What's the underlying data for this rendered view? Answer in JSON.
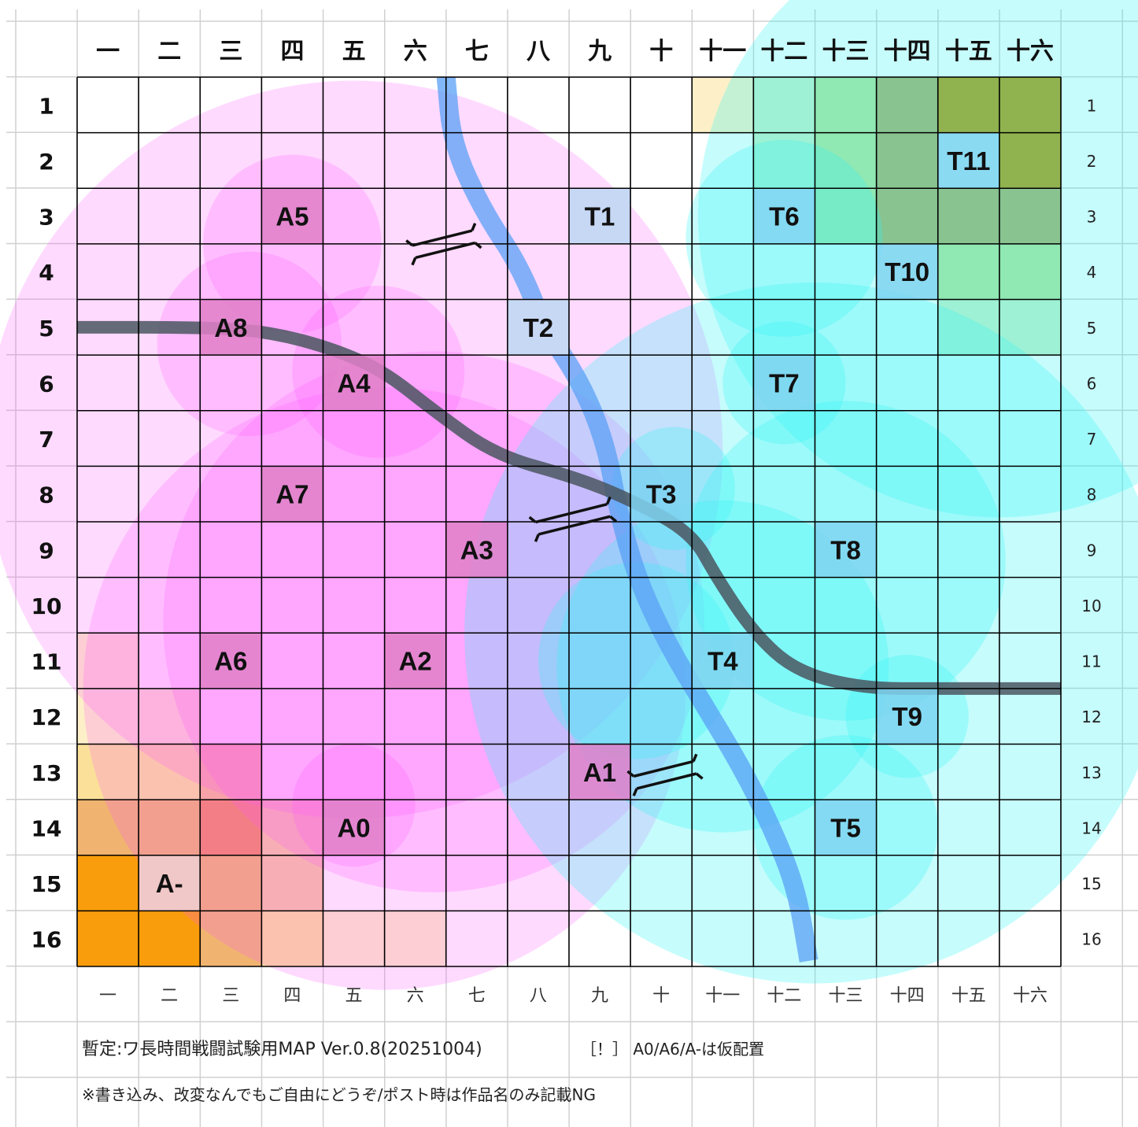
{
  "map": {
    "columns": [
      "一",
      "二",
      "三",
      "四",
      "五",
      "六",
      "七",
      "八",
      "九",
      "十",
      "十一",
      "十二",
      "十三",
      "十四",
      "十五",
      "十六"
    ],
    "rows": [
      "1",
      "2",
      "3",
      "4",
      "5",
      "6",
      "7",
      "8",
      "9",
      "10",
      "11",
      "12",
      "13",
      "14",
      "15",
      "16"
    ],
    "colors": {
      "a_zone": "#ff55ff",
      "a_unit": "#e07fc8",
      "t_zone": "#33f3f5",
      "t_unit": "#7fd3f0",
      "t1_unit": "#c7d8f5",
      "river": "#5aa0f5",
      "road": "#4a5660",
      "grid": "#000000",
      "outer_grid": "#d0d0d0"
    },
    "units": [
      {
        "label": "A5",
        "col": 4,
        "row": 3,
        "side": "A"
      },
      {
        "label": "A8",
        "col": 3,
        "row": 5,
        "side": "A"
      },
      {
        "label": "A4",
        "col": 5,
        "row": 6,
        "side": "A"
      },
      {
        "label": "A7",
        "col": 4,
        "row": 8,
        "side": "A"
      },
      {
        "label": "A3",
        "col": 7,
        "row": 9,
        "side": "A"
      },
      {
        "label": "A6",
        "col": 3,
        "row": 11,
        "side": "A"
      },
      {
        "label": "A2",
        "col": 6,
        "row": 11,
        "side": "A"
      },
      {
        "label": "A1",
        "col": 9,
        "row": 13,
        "side": "A"
      },
      {
        "label": "A0",
        "col": 5,
        "row": 14,
        "side": "A"
      },
      {
        "label": "A-",
        "col": 2,
        "row": 15,
        "side": "A-"
      },
      {
        "label": "T1",
        "col": 9,
        "row": 3,
        "side": "T1"
      },
      {
        "label": "T2",
        "col": 8,
        "row": 5,
        "side": "T1"
      },
      {
        "label": "T11",
        "col": 15,
        "row": 2,
        "side": "T"
      },
      {
        "label": "T6",
        "col": 12,
        "row": 3,
        "side": "T"
      },
      {
        "label": "T10",
        "col": 14,
        "row": 4,
        "side": "T"
      },
      {
        "label": "T7",
        "col": 12,
        "row": 6,
        "side": "T"
      },
      {
        "label": "T3",
        "col": 10,
        "row": 8,
        "side": "T"
      },
      {
        "label": "T8",
        "col": 13,
        "row": 9,
        "side": "T"
      },
      {
        "label": "T4",
        "col": 11,
        "row": 11,
        "side": "T"
      },
      {
        "label": "T9",
        "col": 14,
        "row": 12,
        "side": "T"
      },
      {
        "label": "T5",
        "col": 13,
        "row": 14,
        "side": "T"
      }
    ],
    "terrain_cells": [
      {
        "col": 15,
        "row": 1,
        "color": "#b49a10"
      },
      {
        "col": 16,
        "row": 1,
        "color": "#b49a10"
      },
      {
        "col": 16,
        "row": 2,
        "color": "#b49a10"
      },
      {
        "col": 14,
        "row": 1,
        "color": "#aab06a"
      },
      {
        "col": 14,
        "row": 2,
        "color": "#aab06a"
      },
      {
        "col": 14,
        "row": 3,
        "color": "#aab06a"
      },
      {
        "col": 15,
        "row": 3,
        "color": "#aab06a"
      },
      {
        "col": 16,
        "row": 3,
        "color": "#aab06a"
      },
      {
        "col": 13,
        "row": 1,
        "color": "#b5e49a"
      },
      {
        "col": 13,
        "row": 2,
        "color": "#b5e49a"
      },
      {
        "col": 13,
        "row": 3,
        "color": "#b5e49a"
      },
      {
        "col": 15,
        "row": 4,
        "color": "#b5e49a"
      },
      {
        "col": 16,
        "row": 4,
        "color": "#b5e49a"
      },
      {
        "col": 12,
        "row": 1,
        "color": "#c8f0c8"
      },
      {
        "col": 12,
        "row": 2,
        "color": "#c8f0c8"
      },
      {
        "col": 15,
        "row": 5,
        "color": "#c8f0c8"
      },
      {
        "col": 16,
        "row": 5,
        "color": "#c8f0c8"
      },
      {
        "col": 11,
        "row": 1,
        "color": "#fdf0c8"
      },
      {
        "col": 1,
        "row": 16,
        "color": "#f99d0c"
      },
      {
        "col": 2,
        "row": 16,
        "color": "#f99d0c"
      },
      {
        "col": 1,
        "row": 15,
        "color": "#f99d0c"
      },
      {
        "col": 3,
        "row": 16,
        "color": "#f0b470"
      },
      {
        "col": 3,
        "row": 15,
        "color": "#f0b470"
      },
      {
        "col": 1,
        "row": 14,
        "color": "#f0b470"
      },
      {
        "col": 2,
        "row": 14,
        "color": "#f0b470"
      },
      {
        "col": 3,
        "row": 14,
        "color": "#f08a64"
      },
      {
        "col": 4,
        "row": 14,
        "color": "#f5c8a0"
      },
      {
        "col": 4,
        "row": 15,
        "color": "#f5c8a0"
      },
      {
        "col": 1,
        "row": 13,
        "color": "#fbe09a"
      },
      {
        "col": 2,
        "row": 13,
        "color": "#fbe09a"
      },
      {
        "col": 3,
        "row": 13,
        "color": "#f5b890"
      },
      {
        "col": 4,
        "row": 16,
        "color": "#fbe09a"
      },
      {
        "col": 5,
        "row": 16,
        "color": "#fdf0c8"
      },
      {
        "col": 6,
        "row": 16,
        "color": "#fdf0c8"
      },
      {
        "col": 1,
        "row": 12,
        "color": "#fdf0c8"
      },
      {
        "col": 1,
        "row": 11,
        "color": "#fdf0c8"
      },
      {
        "col": 2,
        "row": 12,
        "color": "#fdf0c8"
      }
    ],
    "a_zones": [
      {
        "col": 5,
        "row": 7.2,
        "r": 6.0
      },
      {
        "col": 6.3,
        "row": 10.3,
        "r": 4.4
      },
      {
        "col": 4.0,
        "row": 3.5,
        "r": 1.45
      },
      {
        "col": 3.3,
        "row": 5.3,
        "r": 1.5
      },
      {
        "col": 5.4,
        "row": 5.8,
        "r": 1.4
      },
      {
        "col": 5.5,
        "row": 11.5,
        "r": 4.9
      },
      {
        "col": 5.0,
        "row": 13.6,
        "r": 1.0
      }
    ],
    "t_zones": [
      {
        "col": 15.5,
        "row": 3.0,
        "r": 4.9
      },
      {
        "col": 12.5,
        "row": 10.5,
        "r": 5.7
      },
      {
        "col": 12.0,
        "row": 3.4,
        "r": 1.6
      },
      {
        "col": 12.0,
        "row": 6.0,
        "r": 1.0
      },
      {
        "col": 10.2,
        "row": 7.9,
        "r": 1.0
      },
      {
        "col": 13.0,
        "row": 9.2,
        "r": 2.6
      },
      {
        "col": 11.0,
        "row": 11.1,
        "r": 2.7
      },
      {
        "col": 14.0,
        "row": 12.0,
        "r": 1.0
      },
      {
        "col": 13.0,
        "row": 14.0,
        "r": 1.5
      },
      {
        "col": 9.6,
        "row": 11.0,
        "r": 1.6
      }
    ],
    "river": [
      [
        6,
        1
      ],
      [
        6.1,
        2.2
      ],
      [
        6.6,
        3.4
      ],
      [
        7.2,
        4.4
      ],
      [
        7.6,
        5.5
      ],
      [
        8.2,
        6.5
      ],
      [
        8.6,
        7.6
      ],
      [
        8.8,
        8.8
      ],
      [
        9.1,
        10.0
      ],
      [
        9.6,
        11.2
      ],
      [
        10.2,
        12.3
      ],
      [
        10.8,
        13.4
      ],
      [
        11.3,
        14.5
      ],
      [
        11.7,
        15.6
      ],
      [
        11.9,
        16.9
      ]
    ],
    "road": [
      [
        0,
        5.5
      ],
      [
        2.2,
        5.5
      ],
      [
        3.2,
        5.6
      ],
      [
        4.2,
        5.9
      ],
      [
        5.0,
        6.3
      ],
      [
        5.8,
        7.0
      ],
      [
        6.8,
        7.8
      ],
      [
        8.1,
        8.2
      ],
      [
        9.0,
        8.6
      ],
      [
        10.0,
        9.2
      ],
      [
        10.4,
        10.0
      ],
      [
        11.0,
        11.0
      ],
      [
        11.7,
        11.7
      ],
      [
        12.8,
        12.0
      ],
      [
        14.0,
        12.0
      ],
      [
        16.0,
        12.0
      ]
    ],
    "bridges": [
      {
        "col": 6.45,
        "row": 3.45,
        "len": 1.0
      },
      {
        "col": 8.55,
        "row": 8.4,
        "len": 1.2
      },
      {
        "col": 10.05,
        "row": 13.0,
        "len": 1.0
      }
    ],
    "title": "暫定:ワ長時間戦闘試験用MAP Ver.0.8(20251004)",
    "note": "［！］ A0/A6/A-は仮配置",
    "footer": "※書き込み、改変なんでもご自由にどうぞ/ポスト時は作品名のみ記載NG"
  }
}
